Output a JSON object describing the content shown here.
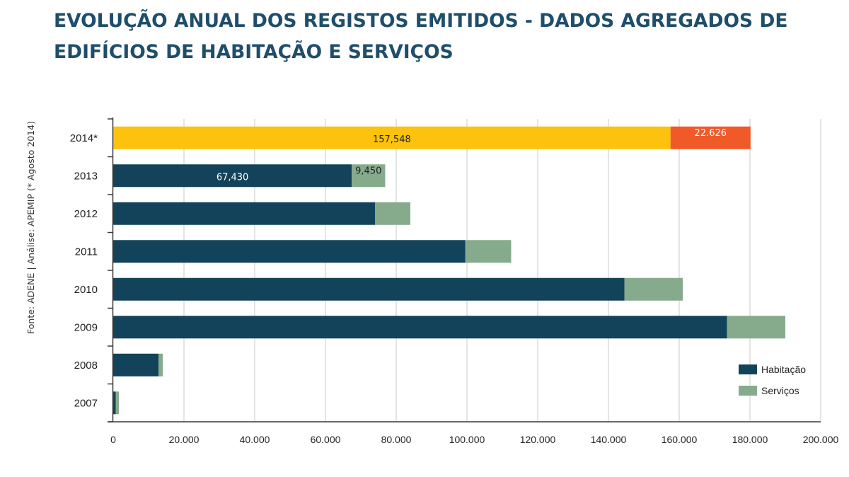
{
  "title": "EVOLUÇÃO ANUAL DOS REGISTOS EMITIDOS - DADOS AGREGADOS DE EDIFÍCIOS DE HABITAÇÃO E SERVIÇOS",
  "source_note": "Fonte: ADENE | Análise: APEMIP  (* Agosto  2014)",
  "colors": {
    "habitacao": "#13435a",
    "servicos": "#86ab8c",
    "habitacao_2014": "#fcc20e",
    "servicos_2014": "#f05a28",
    "grid": "#c8c8c8",
    "axis": "#3a3a3a"
  },
  "chart_data": {
    "type": "bar",
    "orientation": "horizontal",
    "stacked": true,
    "title": "EVOLUÇÃO ANUAL DOS REGISTOS EMITIDOS - DADOS AGREGADOS DE EDIFÍCIOS DE HABITAÇÃO E SERVIÇOS",
    "categories": [
      "2014*",
      "2013",
      "2012",
      "2011",
      "2010",
      "2009",
      "2008",
      "2007"
    ],
    "series": [
      {
        "name": "Habitação",
        "values": [
          157548,
          67430,
          74000,
          99500,
          144500,
          173500,
          12800,
          700
        ]
      },
      {
        "name": "Serviços",
        "values": [
          22626,
          9450,
          10000,
          13000,
          16500,
          16500,
          1200,
          900
        ]
      }
    ],
    "data_labels": [
      {
        "category": "2014*",
        "series": "Habitação",
        "text": "157,548"
      },
      {
        "category": "2014*",
        "series": "Serviços",
        "text": "22.626"
      },
      {
        "category": "2013",
        "series": "Habitação",
        "text": "67,430"
      },
      {
        "category": "2013",
        "series": "Serviços",
        "text": "9,450"
      }
    ],
    "xlim": [
      0,
      200000
    ],
    "xticks": [
      0,
      20000,
      40000,
      60000,
      80000,
      100000,
      120000,
      140000,
      160000,
      180000,
      200000
    ],
    "xtick_labels": [
      "0",
      "20.000",
      "40.000",
      "60.000",
      "80.000",
      "100.000",
      "120.000",
      "140.000",
      "160.000",
      "180.000",
      "200.000"
    ],
    "grid": "vertical",
    "legend": {
      "position": "right",
      "entries": [
        "Habitação",
        "Serviços"
      ]
    },
    "xlabel": "",
    "ylabel": ""
  }
}
